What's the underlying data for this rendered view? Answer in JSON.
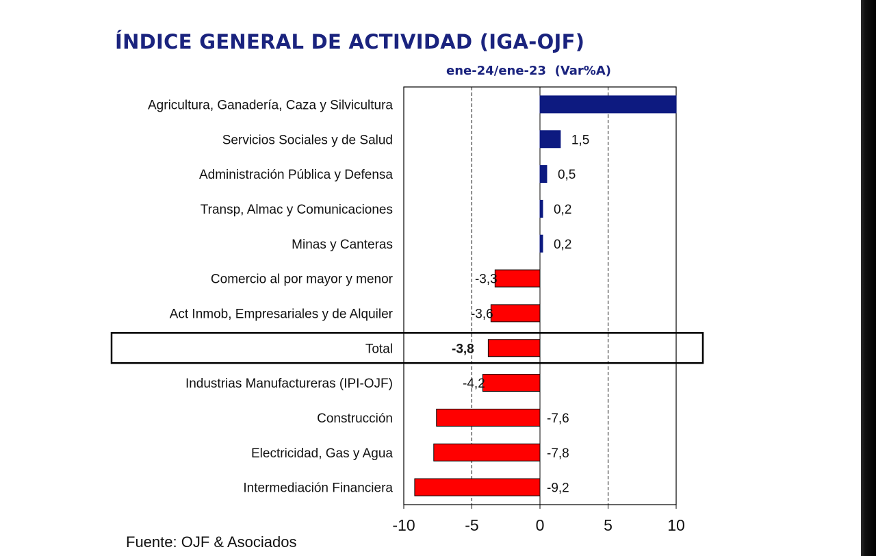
{
  "title": "ÍNDICE GENERAL DE ACTIVIDAD (IGA-OJF)",
  "subtitle": "ene-24/ene-23  (Var%A)",
  "source": "Fuente: OJF & Asociados",
  "colors": {
    "positive": "#0d1a80",
    "negative": "#ff0000",
    "title": "#1a237e"
  },
  "chart_data": {
    "type": "bar",
    "orientation": "horizontal",
    "xlim": [
      -10,
      10
    ],
    "xticks": [
      "-10",
      "-5",
      "0",
      "5",
      "10"
    ],
    "xtick_values": [
      -10,
      -5,
      0,
      5,
      10
    ],
    "grid_values": [
      -5,
      5
    ],
    "highlight": "Total",
    "categories": [
      "Agricultura, Ganadería, Caza y Silvicultura",
      "Servicios Sociales y de Salud",
      "Administración Pública y Defensa",
      "Transp, Almac y Comunicaciones",
      "Minas y Canteras",
      "Comercio al por mayor y menor",
      "Act Inmob, Empresariales y de Alquiler",
      "Total",
      "Industrias Manufactureras (IPI-OJF)",
      "Construcción",
      "Electricidad, Gas y Agua",
      "Intermediación Financiera"
    ],
    "values": [
      10,
      1.5,
      0.5,
      0.2,
      0.2,
      -3.3,
      -3.6,
      -3.8,
      -4.2,
      -7.6,
      -7.8,
      -9.2
    ],
    "labels": [
      "",
      "1,5",
      "0,5",
      "0,2",
      "0,2",
      "-3,3",
      "-3,6",
      "-3,8",
      "-4,2",
      "-7,6",
      "-7,8",
      "-9,2"
    ]
  }
}
